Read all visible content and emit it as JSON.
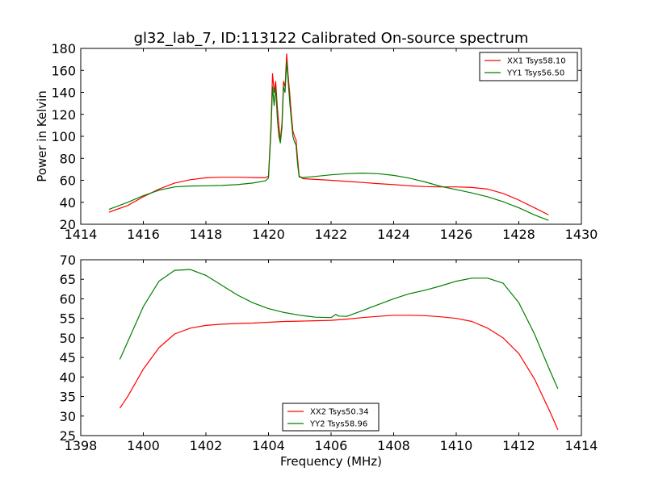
{
  "figure_title": "gl32_lab_7, ID:113122 Calibrated On-source spectrum",
  "chart_data": [
    {
      "type": "line",
      "xlim": [
        1414,
        1430
      ],
      "ylim": [
        20,
        180
      ],
      "xticks": [
        1414,
        1416,
        1418,
        1420,
        1422,
        1424,
        1426,
        1428,
        1430
      ],
      "yticks": [
        20,
        40,
        60,
        80,
        100,
        120,
        140,
        160,
        180
      ],
      "xlabel": "",
      "ylabel": "Power in Kelvin",
      "legend_position": "top-right",
      "series": [
        {
          "name": "XX1 Tsys58.10",
          "color": "#ff0000",
          "points": [
            [
              1414.9,
              31
            ],
            [
              1415.5,
              37
            ],
            [
              1416.0,
              45
            ],
            [
              1416.5,
              52
            ],
            [
              1417.0,
              57.5
            ],
            [
              1417.5,
              60.5
            ],
            [
              1418.0,
              62.3
            ],
            [
              1418.5,
              62.8
            ],
            [
              1419.0,
              62.8
            ],
            [
              1419.5,
              62.5
            ],
            [
              1419.9,
              62.3
            ],
            [
              1420.0,
              64
            ],
            [
              1420.08,
              110
            ],
            [
              1420.13,
              157
            ],
            [
              1420.18,
              140
            ],
            [
              1420.23,
              150
            ],
            [
              1420.28,
              128
            ],
            [
              1420.33,
              110
            ],
            [
              1420.38,
              96
            ],
            [
              1420.43,
              112
            ],
            [
              1420.48,
              150
            ],
            [
              1420.53,
              145
            ],
            [
              1420.58,
              175
            ],
            [
              1420.63,
              155
            ],
            [
              1420.68,
              138
            ],
            [
              1420.73,
              120
            ],
            [
              1420.78,
              105
            ],
            [
              1420.83,
              100
            ],
            [
              1420.88,
              97
            ],
            [
              1420.93,
              80
            ],
            [
              1420.98,
              64
            ],
            [
              1421.1,
              61.5
            ],
            [
              1421.5,
              60.8
            ],
            [
              1422.0,
              60
            ],
            [
              1422.5,
              59
            ],
            [
              1423.0,
              58
            ],
            [
              1423.5,
              57
            ],
            [
              1424.0,
              56
            ],
            [
              1424.5,
              55
            ],
            [
              1425.0,
              54.3
            ],
            [
              1425.5,
              54
            ],
            [
              1426.0,
              54
            ],
            [
              1426.5,
              53.5
            ],
            [
              1427.0,
              52
            ],
            [
              1427.5,
              48
            ],
            [
              1428.0,
              42
            ],
            [
              1428.5,
              35
            ],
            [
              1428.95,
              28.5
            ]
          ]
        },
        {
          "name": "YY1 Tsys56.50",
          "color": "#008000",
          "points": [
            [
              1414.9,
              33.5
            ],
            [
              1415.5,
              40
            ],
            [
              1416.0,
              46
            ],
            [
              1416.5,
              51
            ],
            [
              1417.0,
              54
            ],
            [
              1417.5,
              54.8
            ],
            [
              1418.0,
              55
            ],
            [
              1418.5,
              55.3
            ],
            [
              1419.0,
              56
            ],
            [
              1419.5,
              57.5
            ],
            [
              1419.9,
              59.5
            ],
            [
              1420.0,
              62
            ],
            [
              1420.08,
              105
            ],
            [
              1420.13,
              145
            ],
            [
              1420.18,
              128
            ],
            [
              1420.23,
              145
            ],
            [
              1420.28,
              118
            ],
            [
              1420.33,
              100
            ],
            [
              1420.38,
              94
            ],
            [
              1420.43,
              108
            ],
            [
              1420.48,
              145
            ],
            [
              1420.53,
              140
            ],
            [
              1420.58,
              168
            ],
            [
              1420.63,
              150
            ],
            [
              1420.68,
              130
            ],
            [
              1420.73,
              115
            ],
            [
              1420.78,
              100
            ],
            [
              1420.83,
              95
            ],
            [
              1420.88,
              92
            ],
            [
              1420.93,
              75
            ],
            [
              1420.98,
              63
            ],
            [
              1421.1,
              62.5
            ],
            [
              1421.5,
              63.5
            ],
            [
              1422.0,
              65
            ],
            [
              1422.5,
              66
            ],
            [
              1423.0,
              66.5
            ],
            [
              1423.5,
              66
            ],
            [
              1424.0,
              64.5
            ],
            [
              1424.5,
              62
            ],
            [
              1425.0,
              58.5
            ],
            [
              1425.5,
              54.5
            ],
            [
              1426.0,
              51.5
            ],
            [
              1426.5,
              48.5
            ],
            [
              1427.0,
              45
            ],
            [
              1427.5,
              40.5
            ],
            [
              1428.0,
              35
            ],
            [
              1428.5,
              28.5
            ],
            [
              1428.95,
              23.5
            ]
          ]
        }
      ]
    },
    {
      "type": "line",
      "xlim": [
        1398,
        1414
      ],
      "ylim": [
        25,
        70
      ],
      "xticks": [
        1398,
        1400,
        1402,
        1404,
        1406,
        1408,
        1410,
        1412,
        1414
      ],
      "yticks": [
        25,
        30,
        35,
        40,
        45,
        50,
        55,
        60,
        65,
        70
      ],
      "xlabel": "Frequency (MHz)",
      "ylabel": "",
      "legend_position": "bottom-center",
      "series": [
        {
          "name": "XX2 Tsys50.34",
          "color": "#ff0000",
          "points": [
            [
              1399.25,
              32
            ],
            [
              1399.5,
              35
            ],
            [
              1400.0,
              42
            ],
            [
              1400.5,
              47.5
            ],
            [
              1401.0,
              51
            ],
            [
              1401.5,
              52.5
            ],
            [
              1402.0,
              53.2
            ],
            [
              1402.5,
              53.5
            ],
            [
              1403.0,
              53.7
            ],
            [
              1403.5,
              53.8
            ],
            [
              1404.0,
              54
            ],
            [
              1404.5,
              54.2
            ],
            [
              1405.0,
              54.3
            ],
            [
              1405.5,
              54.4
            ],
            [
              1406.0,
              54.5
            ],
            [
              1406.5,
              54.8
            ],
            [
              1407.0,
              55.2
            ],
            [
              1407.5,
              55.5
            ],
            [
              1408.0,
              55.8
            ],
            [
              1408.5,
              55.8
            ],
            [
              1409.0,
              55.7
            ],
            [
              1409.5,
              55.4
            ],
            [
              1410.0,
              55
            ],
            [
              1410.5,
              54.2
            ],
            [
              1411.0,
              52.5
            ],
            [
              1411.5,
              50
            ],
            [
              1412.0,
              46
            ],
            [
              1412.5,
              39.5
            ],
            [
              1413.0,
              31
            ],
            [
              1413.25,
              26.5
            ]
          ]
        },
        {
          "name": "YY2 Tsys58.96",
          "color": "#008000",
          "points": [
            [
              1399.25,
              44.5
            ],
            [
              1399.5,
              49
            ],
            [
              1400.0,
              58
            ],
            [
              1400.5,
              64.5
            ],
            [
              1401.0,
              67.3
            ],
            [
              1401.5,
              67.5
            ],
            [
              1402.0,
              66
            ],
            [
              1402.5,
              63.5
            ],
            [
              1403.0,
              61
            ],
            [
              1403.5,
              59
            ],
            [
              1404.0,
              57.5
            ],
            [
              1404.5,
              56.5
            ],
            [
              1405.0,
              55.8
            ],
            [
              1405.5,
              55.3
            ],
            [
              1406.0,
              55.2
            ],
            [
              1406.15,
              56
            ],
            [
              1406.25,
              55.6
            ],
            [
              1406.5,
              55.5
            ],
            [
              1407.0,
              57
            ],
            [
              1407.5,
              58.5
            ],
            [
              1408.0,
              60
            ],
            [
              1408.5,
              61.3
            ],
            [
              1409.0,
              62.2
            ],
            [
              1409.5,
              63.3
            ],
            [
              1410.0,
              64.5
            ],
            [
              1410.5,
              65.3
            ],
            [
              1411.0,
              65.3
            ],
            [
              1411.5,
              64
            ],
            [
              1412.0,
              59
            ],
            [
              1412.5,
              51
            ],
            [
              1413.0,
              41.5
            ],
            [
              1413.25,
              37
            ]
          ]
        }
      ]
    }
  ]
}
